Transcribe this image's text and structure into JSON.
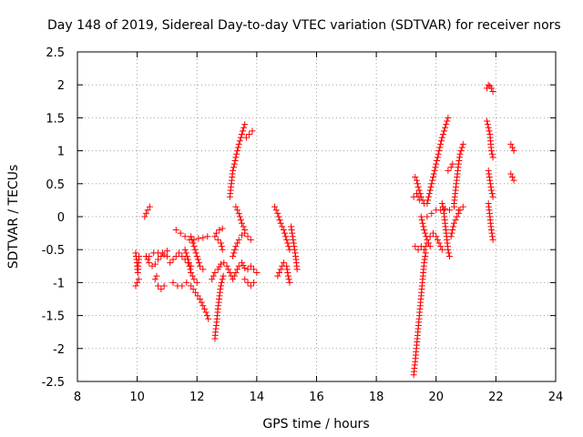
{
  "chart_data": {
    "type": "scatter",
    "title": "Day 148 of 2019, Sidereal Day-to-day VTEC variation (SDTVAR) for receiver nors",
    "xlabel": "GPS time / hours",
    "ylabel": "SDTVAR / TECUs",
    "xlim": [
      8,
      24
    ],
    "ylim": [
      -2.5,
      2.5
    ],
    "xticks": [
      "8",
      "10",
      "12",
      "14",
      "16",
      "18",
      "20",
      "22",
      "24"
    ],
    "yticks": [
      "2.5",
      "2",
      "1.5",
      "1",
      "0.5",
      "0",
      "-0.5",
      "-1",
      "-1.5",
      "-2",
      "-2.5"
    ],
    "grid": true,
    "marker": "+",
    "color": "#ff0000",
    "series": [
      {
        "name": "SDTVAR",
        "tracks": [
          [
            [
              9.95,
              -0.55
            ],
            [
              9.98,
              -0.65
            ],
            [
              10.0,
              -0.75
            ],
            [
              10.02,
              -0.85
            ],
            [
              10.04,
              -0.7
            ],
            [
              10.06,
              -0.6
            ]
          ],
          [
            [
              9.95,
              -1.05
            ],
            [
              10.0,
              -1.0
            ],
            [
              10.05,
              -0.95
            ]
          ],
          [
            [
              10.25,
              0.0
            ],
            [
              10.3,
              0.05
            ],
            [
              10.35,
              0.1
            ],
            [
              10.42,
              0.15
            ]
          ],
          [
            [
              10.3,
              -0.6
            ],
            [
              10.4,
              -0.7
            ],
            [
              10.5,
              -0.75
            ],
            [
              10.6,
              -0.72
            ],
            [
              10.7,
              -0.65
            ],
            [
              10.8,
              -0.6
            ],
            [
              10.9,
              -0.58
            ],
            [
              11.0,
              -0.6
            ]
          ],
          [
            [
              10.4,
              -0.6
            ],
            [
              10.55,
              -0.55
            ],
            [
              10.7,
              -0.55
            ],
            [
              10.85,
              -0.55
            ],
            [
              11.0,
              -0.52
            ]
          ],
          [
            [
              10.7,
              -1.05
            ],
            [
              10.8,
              -1.1
            ],
            [
              10.9,
              -1.05
            ]
          ],
          [
            [
              10.6,
              -0.95
            ],
            [
              10.65,
              -0.9
            ]
          ],
          [
            [
              11.1,
              -0.7
            ],
            [
              11.2,
              -0.65
            ],
            [
              11.3,
              -0.6
            ],
            [
              11.4,
              -0.55
            ],
            [
              11.5,
              -0.6
            ],
            [
              11.6,
              -0.65
            ],
            [
              11.7,
              -0.7
            ],
            [
              11.8,
              -0.75
            ]
          ],
          [
            [
              11.3,
              -0.2
            ],
            [
              11.45,
              -0.25
            ],
            [
              11.6,
              -0.3
            ],
            [
              11.75,
              -0.35
            ],
            [
              11.9,
              -0.35
            ],
            [
              12.05,
              -0.33
            ],
            [
              12.2,
              -0.32
            ],
            [
              12.35,
              -0.3
            ]
          ],
          [
            [
              11.2,
              -1.0
            ],
            [
              11.35,
              -1.05
            ],
            [
              11.5,
              -1.05
            ],
            [
              11.65,
              -1.0
            ],
            [
              11.8,
              -1.05
            ],
            [
              11.95,
              -1.15
            ],
            [
              12.1,
              -1.25
            ],
            [
              12.2,
              -1.35
            ],
            [
              12.3,
              -1.45
            ],
            [
              12.38,
              -1.55
            ]
          ],
          [
            [
              11.6,
              -0.5
            ],
            [
              11.7,
              -0.65
            ],
            [
              11.8,
              -0.85
            ],
            [
              11.9,
              -0.95
            ],
            [
              12.0,
              -1.0
            ]
          ],
          [
            [
              11.8,
              -0.3
            ],
            [
              11.9,
              -0.45
            ],
            [
              12.0,
              -0.6
            ],
            [
              12.1,
              -0.75
            ],
            [
              12.2,
              -0.8
            ]
          ],
          [
            [
              12.6,
              -0.3
            ],
            [
              12.7,
              -0.35
            ],
            [
              12.8,
              -0.4
            ],
            [
              12.85,
              -0.5
            ]
          ],
          [
            [
              12.65,
              -0.25
            ],
            [
              12.75,
              -0.2
            ],
            [
              12.85,
              -0.18
            ]
          ],
          [
            [
              12.5,
              -0.95
            ],
            [
              12.6,
              -0.85
            ],
            [
              12.7,
              -0.8
            ],
            [
              12.8,
              -0.72
            ],
            [
              12.9,
              -0.7
            ]
          ],
          [
            [
              12.6,
              -1.85
            ],
            [
              12.63,
              -1.7
            ],
            [
              12.67,
              -1.55
            ],
            [
              12.7,
              -1.4
            ],
            [
              12.74,
              -1.25
            ],
            [
              12.78,
              -1.1
            ],
            [
              12.82,
              -1.0
            ],
            [
              12.88,
              -0.9
            ]
          ],
          [
            [
              13.0,
              -0.75
            ],
            [
              13.1,
              -0.85
            ],
            [
              13.2,
              -0.95
            ],
            [
              13.3,
              -0.85
            ],
            [
              13.4,
              -0.75
            ],
            [
              13.5,
              -0.7
            ],
            [
              13.6,
              -0.78
            ],
            [
              13.7,
              -0.8
            ]
          ],
          [
            [
              13.2,
              -0.6
            ],
            [
              13.3,
              -0.45
            ],
            [
              13.4,
              -0.35
            ],
            [
              13.5,
              -0.28
            ],
            [
              13.6,
              -0.25
            ],
            [
              13.7,
              -0.3
            ],
            [
              13.8,
              -0.35
            ]
          ],
          [
            [
              13.1,
              0.3
            ],
            [
              13.15,
              0.5
            ],
            [
              13.2,
              0.7
            ],
            [
              13.3,
              0.9
            ],
            [
              13.4,
              1.1
            ],
            [
              13.5,
              1.25
            ],
            [
              13.6,
              1.4
            ]
          ],
          [
            [
              13.3,
              0.15
            ],
            [
              13.4,
              0.05
            ],
            [
              13.5,
              -0.1
            ],
            [
              13.6,
              -0.2
            ]
          ],
          [
            [
              13.65,
              1.2
            ],
            [
              13.75,
              1.25
            ],
            [
              13.85,
              1.3
            ]
          ],
          [
            [
              13.6,
              -0.95
            ],
            [
              13.7,
              -1.0
            ],
            [
              13.8,
              -1.05
            ],
            [
              13.9,
              -1.0
            ]
          ],
          [
            [
              13.8,
              -0.75
            ],
            [
              13.9,
              -0.8
            ],
            [
              14.0,
              -0.85
            ]
          ],
          [
            [
              14.6,
              0.15
            ],
            [
              14.7,
              0.05
            ],
            [
              14.8,
              -0.1
            ],
            [
              14.9,
              -0.2
            ],
            [
              15.0,
              -0.35
            ],
            [
              15.1,
              -0.5
            ]
          ],
          [
            [
              14.7,
              -0.9
            ],
            [
              14.8,
              -0.8
            ],
            [
              14.9,
              -0.7
            ],
            [
              15.0,
              -0.75
            ],
            [
              15.05,
              -0.9
            ],
            [
              15.1,
              -1.0
            ]
          ],
          [
            [
              15.15,
              -0.15
            ],
            [
              15.2,
              -0.3
            ],
            [
              15.25,
              -0.45
            ],
            [
              15.3,
              -0.6
            ],
            [
              15.35,
              -0.8
            ]
          ],
          [
            [
              19.25,
              -2.4
            ],
            [
              19.3,
              -2.2
            ],
            [
              19.35,
              -1.95
            ],
            [
              19.4,
              -1.7
            ],
            [
              19.45,
              -1.45
            ],
            [
              19.5,
              -1.2
            ],
            [
              19.55,
              -0.95
            ],
            [
              19.6,
              -0.7
            ],
            [
              19.65,
              -0.55
            ]
          ],
          [
            [
              19.3,
              -0.45
            ],
            [
              19.4,
              -0.5
            ],
            [
              19.5,
              -0.45
            ],
            [
              19.6,
              -0.5
            ],
            [
              19.7,
              -0.4
            ]
          ],
          [
            [
              19.3,
              0.6
            ],
            [
              19.35,
              0.55
            ],
            [
              19.4,
              0.45
            ],
            [
              19.5,
              0.3
            ],
            [
              19.6,
              0.2
            ]
          ],
          [
            [
              19.25,
              0.3
            ],
            [
              19.35,
              0.35
            ],
            [
              19.45,
              0.25
            ]
          ],
          [
            [
              19.5,
              0.0
            ],
            [
              19.6,
              -0.2
            ],
            [
              19.7,
              -0.35
            ],
            [
              19.8,
              -0.45
            ]
          ],
          [
            [
              19.7,
              0.2
            ],
            [
              19.8,
              0.4
            ],
            [
              19.9,
              0.6
            ],
            [
              20.0,
              0.8
            ],
            [
              20.1,
              1.0
            ],
            [
              20.2,
              1.2
            ],
            [
              20.3,
              1.35
            ],
            [
              20.4,
              1.5
            ]
          ],
          [
            [
              19.8,
              -0.3
            ],
            [
              19.9,
              -0.25
            ],
            [
              20.0,
              -0.3
            ],
            [
              20.1,
              -0.4
            ],
            [
              20.2,
              -0.5
            ]
          ],
          [
            [
              19.7,
              0.0
            ],
            [
              19.85,
              0.05
            ],
            [
              20.0,
              0.1
            ],
            [
              20.15,
              0.1
            ],
            [
              20.3,
              0.12
            ],
            [
              20.45,
              0.1
            ],
            [
              20.6,
              0.15
            ],
            [
              20.75,
              0.1
            ]
          ],
          [
            [
              20.2,
              0.2
            ],
            [
              20.25,
              0.1
            ],
            [
              20.3,
              -0.1
            ],
            [
              20.35,
              -0.3
            ],
            [
              20.4,
              -0.5
            ],
            [
              20.45,
              -0.6
            ]
          ],
          [
            [
              20.6,
              0.2
            ],
            [
              20.65,
              0.4
            ],
            [
              20.7,
              0.6
            ],
            [
              20.75,
              0.8
            ],
            [
              20.8,
              0.95
            ],
            [
              20.9,
              1.1
            ]
          ],
          [
            [
              20.5,
              -0.3
            ],
            [
              20.6,
              -0.1
            ],
            [
              20.7,
              0.0
            ],
            [
              20.8,
              0.1
            ],
            [
              20.9,
              0.15
            ]
          ],
          [
            [
              20.4,
              0.7
            ],
            [
              20.5,
              0.75
            ],
            [
              20.55,
              0.8
            ]
          ],
          [
            [
              21.7,
              1.95
            ],
            [
              21.75,
              2.0
            ],
            [
              21.8,
              1.98
            ],
            [
              21.85,
              1.95
            ],
            [
              21.9,
              1.9
            ]
          ],
          [
            [
              21.7,
              1.45
            ],
            [
              21.75,
              1.35
            ],
            [
              21.8,
              1.25
            ],
            [
              21.85,
              1.0
            ],
            [
              21.9,
              0.9
            ]
          ],
          [
            [
              21.75,
              0.7
            ],
            [
              21.8,
              0.55
            ],
            [
              21.85,
              0.4
            ],
            [
              21.9,
              0.3
            ]
          ],
          [
            [
              21.75,
              0.2
            ],
            [
              21.8,
              0.0
            ],
            [
              21.85,
              -0.2
            ],
            [
              21.9,
              -0.35
            ]
          ],
          [
            [
              22.5,
              1.1
            ],
            [
              22.55,
              1.05
            ],
            [
              22.6,
              1.0
            ]
          ],
          [
            [
              22.5,
              0.65
            ],
            [
              22.55,
              0.6
            ],
            [
              22.6,
              0.55
            ]
          ]
        ]
      }
    ]
  }
}
